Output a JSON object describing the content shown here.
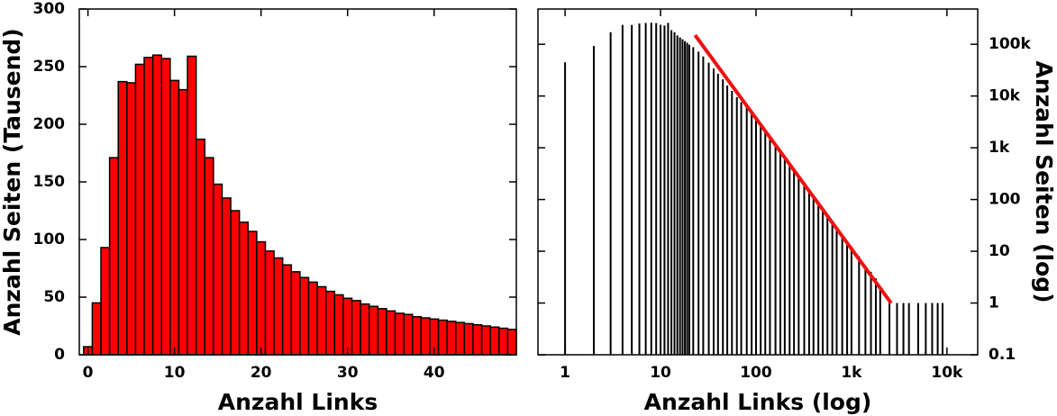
{
  "chart_data": [
    {
      "type": "histogram",
      "xlabel": "Anzahl Links",
      "ylabel": "Anzahl Seiten (Tausend)",
      "color": "#ff0000",
      "bins": [
        -0.5,
        0.5,
        1.5,
        2.5,
        3.5,
        4.5,
        5.5,
        6.5,
        7.5,
        8.5,
        9.5,
        10.5,
        11.5,
        12.5,
        13.5,
        14.5,
        15.5,
        16.5,
        17.5,
        18.5,
        19.5,
        20.5,
        21.5,
        22.5,
        23.5,
        24.5,
        25.5,
        26.5,
        27.5,
        28.5,
        29.5,
        30.5,
        31.5,
        32.5,
        33.5,
        34.5,
        35.5,
        36.5,
        37.5,
        38.5,
        39.5,
        40.5,
        41.5,
        42.5,
        43.5,
        44.5,
        45.5,
        46.5,
        47.5,
        48.5,
        49.5
      ],
      "values": [
        7,
        45,
        93,
        171,
        237,
        236,
        252,
        258,
        260,
        257,
        238,
        230,
        259,
        187,
        171,
        148,
        136,
        125,
        115,
        107,
        98,
        90,
        84,
        78,
        72,
        67,
        63,
        59,
        55,
        52,
        49,
        47,
        44,
        42,
        40,
        38,
        36,
        35,
        33,
        32,
        31,
        30,
        29,
        28,
        27,
        26,
        25,
        24,
        23,
        22
      ],
      "xlim": [
        -1,
        49.5
      ],
      "xticks": [
        0,
        10,
        20,
        30,
        40
      ],
      "ylim": [
        0,
        300
      ],
      "yticks": [
        0,
        50,
        100,
        150,
        200,
        250,
        300
      ]
    },
    {
      "type": "bar",
      "xlabel": "Anzahl Links (log)",
      "ylabel": "Anzahl Seiten (log)",
      "color": "#000000",
      "xlog": true,
      "ylog": true,
      "yaxis_side": "right",
      "x": [
        1,
        2,
        3,
        4,
        5,
        6,
        7,
        8,
        9,
        10,
        11,
        12,
        13,
        14,
        15,
        16,
        17,
        18,
        19,
        20,
        22,
        25,
        28,
        32,
        36,
        40,
        45,
        50,
        56,
        63,
        70,
        80,
        90,
        100,
        112,
        125,
        140,
        160,
        180,
        200,
        225,
        250,
        280,
        320,
        360,
        400,
        450,
        500,
        560,
        630,
        700,
        800,
        900,
        1000,
        1200,
        1400,
        1600,
        1800,
        2000,
        2500,
        3000,
        3500,
        4000,
        5000,
        6000,
        7000,
        8000,
        9000
      ],
      "values": [
        45000,
        93000,
        171000,
        237000,
        236000,
        252000,
        258000,
        260000,
        257000,
        238000,
        230000,
        259000,
        187000,
        171000,
        148000,
        136000,
        125000,
        115000,
        107000,
        98000,
        88000,
        72000,
        58000,
        44000,
        34000,
        27000,
        21000,
        16000,
        12500,
        9500,
        7600,
        6000,
        4900,
        3800,
        2900,
        2200,
        1650,
        1200,
        880,
        670,
        500,
        380,
        290,
        210,
        150,
        120,
        85,
        67,
        50,
        38,
        29,
        21,
        15,
        12,
        8,
        5,
        4,
        3,
        2,
        1,
        1,
        1,
        1,
        1,
        1,
        1,
        1,
        1
      ],
      "fit_line": {
        "x": [
          23,
          2600
        ],
        "values": [
          150000,
          1
        ],
        "color": "#ee1111"
      },
      "xlim": [
        0.52,
        21000
      ],
      "xticks": [
        1,
        10,
        100,
        {
          "value": 1000,
          "label": "1k"
        },
        {
          "value": 10000,
          "label": "10k"
        }
      ],
      "ylim": [
        0.1,
        480000
      ],
      "yticks": [
        0.1,
        1,
        10,
        100,
        {
          "value": 1000,
          "label": "1k"
        },
        {
          "value": 10000,
          "label": "10k"
        },
        {
          "value": 100000,
          "label": "100k"
        }
      ]
    }
  ]
}
